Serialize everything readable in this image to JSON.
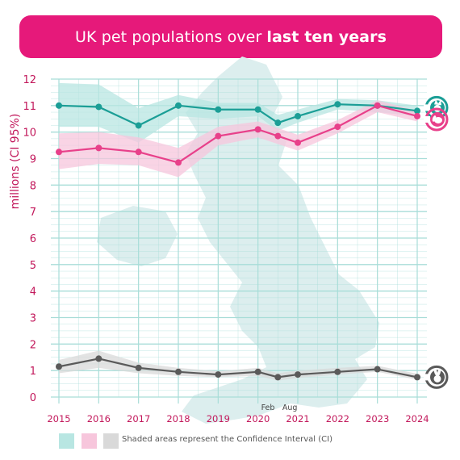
{
  "title": {
    "prefix": "UK pet populations over",
    "emphasis": "last ten years"
  },
  "colors": {
    "brand": "#e6197a",
    "teal": "#1b9e96",
    "teal_band": "#b8e6e2",
    "pink": "#e8408a",
    "pink_band": "#f7c6dc",
    "gray": "#5a5a5a",
    "gray_band": "#d9d9d9",
    "axis_label": "#c2185b",
    "grid": "#a8ddd8",
    "map": "#dceeee"
  },
  "chart_data": {
    "type": "line",
    "ylabel": "millions (CI 95%)",
    "ylim": [
      0,
      12
    ],
    "yticks": [
      0,
      1,
      2,
      3,
      4,
      5,
      6,
      7,
      8,
      9,
      10,
      11,
      12
    ],
    "x": [
      2015,
      2016,
      2017,
      2018,
      2019,
      2020,
      2020.5,
      2021,
      2022,
      2023,
      2024
    ],
    "xtick_labels": [
      "2015",
      "2016",
      "2017",
      "2018",
      "2019",
      "2020",
      "2021",
      "2022",
      "2023",
      "2024"
    ],
    "xtick_values": [
      2015,
      2016,
      2017,
      2018,
      2019,
      2020,
      2021,
      2022,
      2023,
      2024
    ],
    "annotations": [
      {
        "text": "Feb",
        "x": 2020.25
      },
      {
        "text": "Aug",
        "x": 2020.8
      }
    ],
    "grid": true,
    "series": [
      {
        "icon": "cat-icon",
        "color_key": "teal",
        "values": [
          11.0,
          10.95,
          10.25,
          11.0,
          10.85,
          10.85,
          10.35,
          10.6,
          11.05,
          11.0,
          10.8
        ],
        "ci_low": [
          10.2,
          10.2,
          9.6,
          10.6,
          10.5,
          10.6,
          10.05,
          10.35,
          10.85,
          10.75,
          10.6
        ],
        "ci_high": [
          11.85,
          11.8,
          10.9,
          11.4,
          11.1,
          11.1,
          10.65,
          10.85,
          11.25,
          11.2,
          11.0
        ]
      },
      {
        "icon": "dog-icon",
        "color_key": "pink",
        "values": [
          9.25,
          9.4,
          9.25,
          8.85,
          9.85,
          10.1,
          9.85,
          9.6,
          10.2,
          11.0,
          10.6
        ],
        "ci_low": [
          8.6,
          8.8,
          8.75,
          8.3,
          9.5,
          9.8,
          9.55,
          9.3,
          9.95,
          10.75,
          10.4
        ],
        "ci_high": [
          9.95,
          10.0,
          9.8,
          9.4,
          10.2,
          10.4,
          10.15,
          9.9,
          10.45,
          11.2,
          10.8
        ]
      },
      {
        "icon": "rabbit-icon",
        "color_key": "gray",
        "values": [
          1.15,
          1.45,
          1.1,
          0.95,
          0.85,
          0.95,
          0.75,
          0.85,
          0.95,
          1.05,
          0.75
        ],
        "ci_low": [
          0.9,
          1.1,
          0.9,
          0.8,
          0.75,
          0.8,
          0.62,
          0.72,
          0.85,
          0.95,
          0.65
        ],
        "ci_high": [
          1.4,
          1.75,
          1.3,
          1.1,
          0.98,
          1.1,
          0.9,
          1.0,
          1.1,
          1.18,
          0.88
        ]
      }
    ]
  },
  "legend": {
    "text": "Shaded areas represent the Confidence Interval (CI)",
    "swatches": [
      "teal_band",
      "pink_band",
      "gray_band"
    ]
  }
}
